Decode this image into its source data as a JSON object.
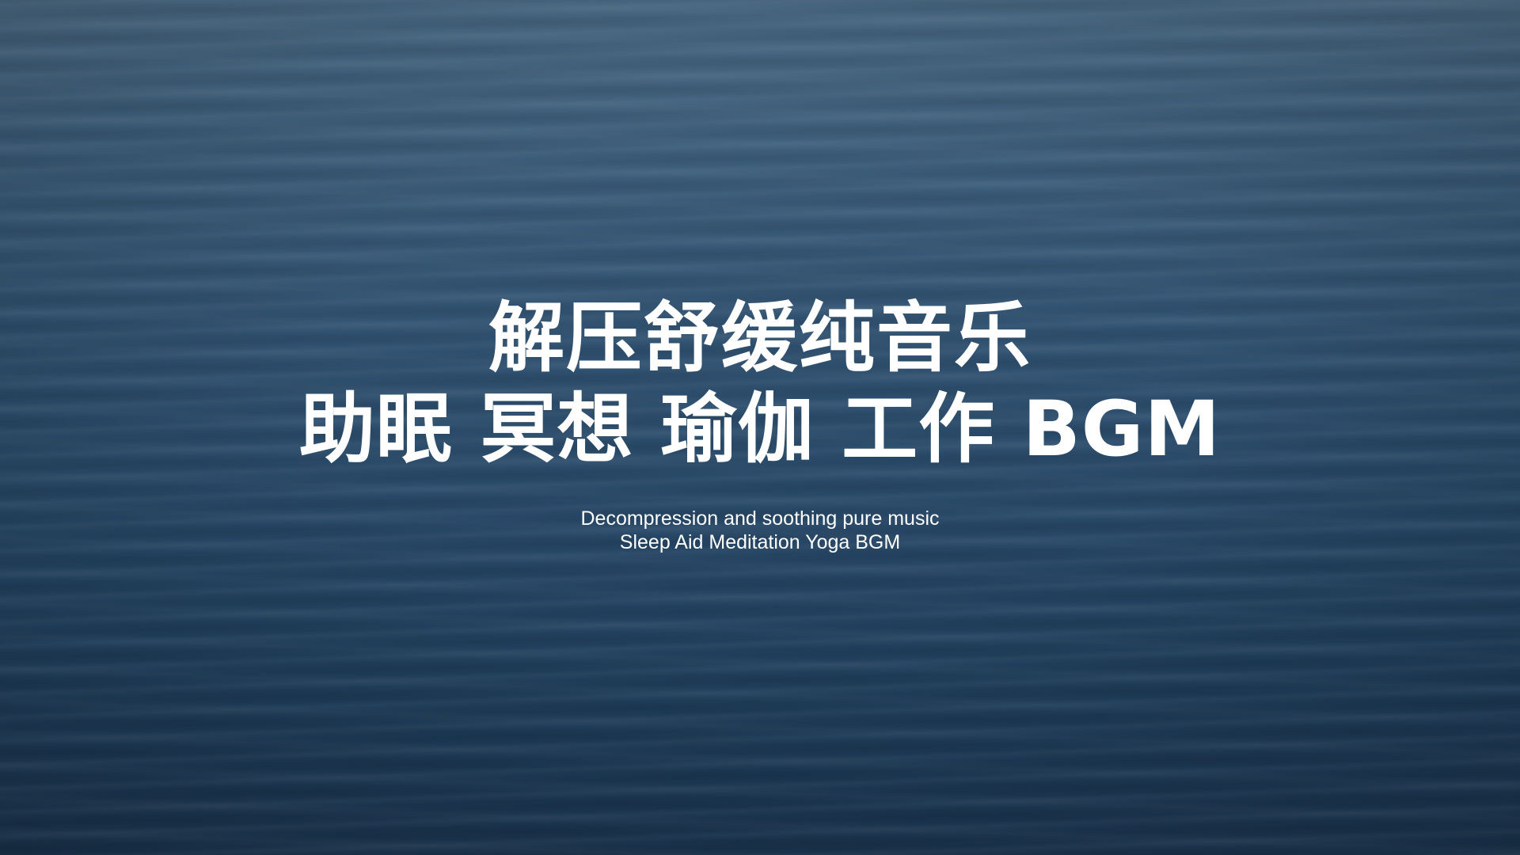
{
  "title": {
    "line1": "解压舒缓纯音乐",
    "line2": "助眠 冥想 瑜伽 工作 BGM"
  },
  "subtitle": {
    "line1": "Decompression and soothing pure music",
    "line2": "Sleep Aid Meditation Yoga BGM"
  },
  "colors": {
    "background": "#2a4b6a",
    "text": "#ffffff"
  }
}
